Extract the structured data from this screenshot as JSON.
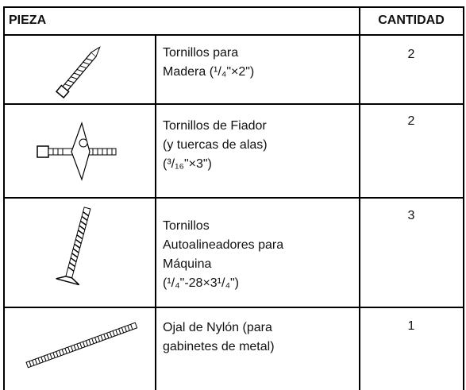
{
  "table": {
    "headers": [
      "PIEZA",
      "CANTIDAD"
    ],
    "rows": [
      {
        "description": [
          "Tornillos para",
          "Madera (¹/₄\"×2\")"
        ],
        "quantity": 2
      },
      {
        "description": [
          "Tornillos de Fiador",
          "(y tuercas de alas)",
          "(³/₁₆\"×3\")"
        ],
        "quantity": 2
      },
      {
        "description": [
          "Tornillos",
          "Autoalineadores para",
          "Máquina",
          "(¹/₄\"-28×3¹/₄\")"
        ],
        "quantity": 3
      },
      {
        "description": [
          "Ojal de Nylón (para",
          "gabinetes de metal)"
        ],
        "quantity": 1
      }
    ]
  }
}
